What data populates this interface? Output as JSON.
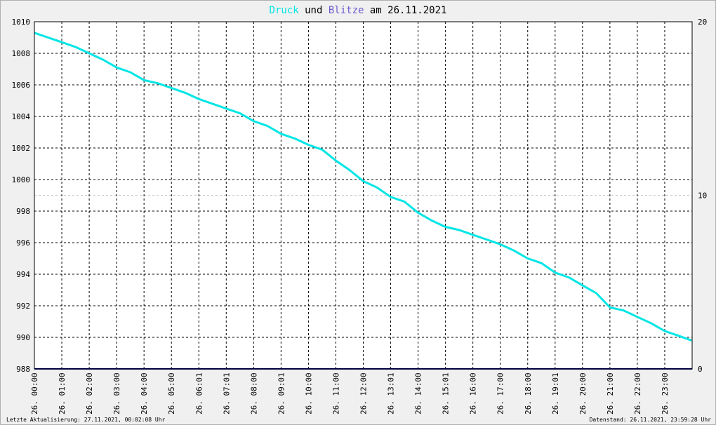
{
  "title": {
    "part1": "Druck",
    "part2": " und ",
    "part3": "Blitze",
    "part4": " am 26.11.2021",
    "color1": "#00e5e5",
    "color3": "#6a5acd"
  },
  "footer": {
    "left": "Letzte Aktualisierung: 27.11.2021, 00:02:08 Uhr",
    "right": "Datenstand: 26.11.2021, 23:59:28 Uhr"
  },
  "chart_data": {
    "type": "line",
    "x_ticks": [
      "26. 00:00",
      "26. 01:00",
      "26. 02:00",
      "26. 03:00",
      "26. 04:00",
      "26. 05:00",
      "26. 06:01",
      "26. 07:01",
      "26. 08:00",
      "26. 09:01",
      "26. 10:00",
      "26. 11:00",
      "26. 12:00",
      "26. 13:01",
      "26. 14:00",
      "26. 15:01",
      "26. 16:00",
      "26. 17:00",
      "26. 18:00",
      "26. 19:01",
      "26. 20:00",
      "26. 21:00",
      "26. 22:00",
      "26. 23:00"
    ],
    "ylim_left": [
      988,
      1010
    ],
    "y_ticks_left": [
      988,
      990,
      992,
      994,
      996,
      998,
      1000,
      1002,
      1004,
      1006,
      1008,
      1010
    ],
    "ylim_right": [
      0,
      20
    ],
    "y_ticks_right": [
      0,
      10,
      20
    ],
    "grid": true,
    "colors": {
      "pressure": "#00e5e5",
      "lightning": "#000080",
      "grid": "#000000",
      "plot_bg": "#ffffff"
    },
    "series": [
      {
        "name": "Druck",
        "axis": "left",
        "x_hours": [
          0,
          0.5,
          1,
          1.5,
          2,
          2.5,
          3,
          3.5,
          4,
          4.5,
          5,
          5.5,
          6,
          6.5,
          7,
          7.5,
          8,
          8.5,
          9,
          9.5,
          10,
          10.5,
          11,
          11.5,
          12,
          12.5,
          13,
          13.5,
          14,
          14.5,
          15,
          15.5,
          16,
          16.5,
          17,
          17.5,
          18,
          18.5,
          19,
          19.5,
          20,
          20.5,
          21,
          21.5,
          22,
          22.5,
          23,
          23.5,
          23.98
        ],
        "values": [
          1009.3,
          1009.0,
          1008.7,
          1008.4,
          1008.0,
          1007.6,
          1007.1,
          1006.8,
          1006.3,
          1006.1,
          1005.8,
          1005.5,
          1005.1,
          1004.8,
          1004.5,
          1004.2,
          1003.7,
          1003.4,
          1002.9,
          1002.6,
          1002.2,
          1001.9,
          1001.2,
          1000.6,
          999.9,
          999.5,
          998.9,
          998.6,
          997.9,
          997.4,
          997.0,
          996.8,
          996.5,
          996.2,
          995.9,
          995.5,
          995.0,
          994.7,
          994.1,
          993.8,
          993.3,
          992.8,
          991.9,
          991.7,
          991.3,
          990.9,
          990.4,
          990.1,
          989.8
        ]
      },
      {
        "name": "Blitze",
        "axis": "right",
        "x_hours": [
          0,
          24
        ],
        "values": [
          0,
          0
        ]
      }
    ]
  }
}
